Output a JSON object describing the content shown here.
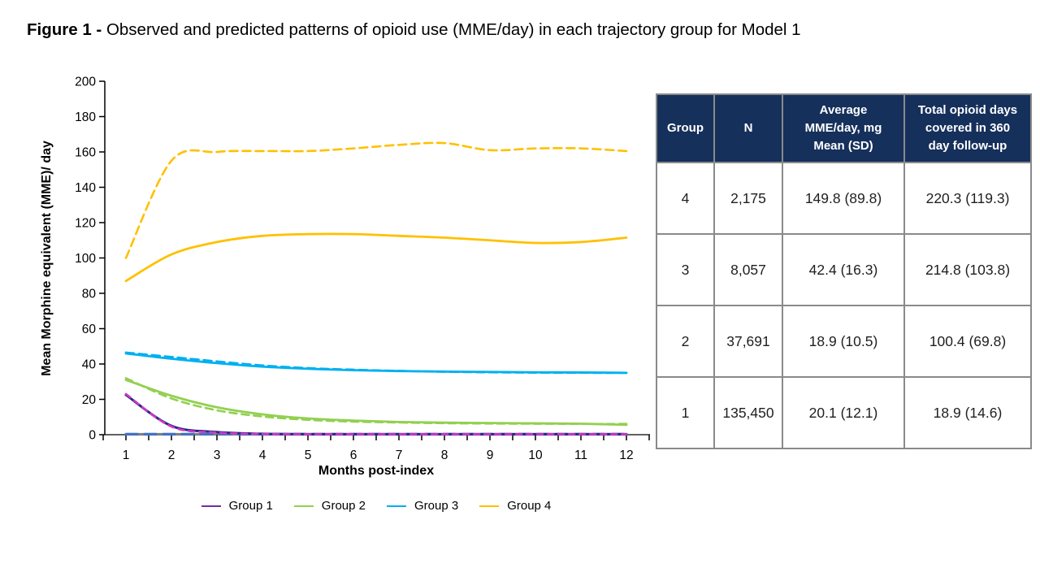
{
  "title": {
    "bold": "Figure 1 -",
    "rest": " Observed and predicted patterns of opioid use (MME/day) in each trajectory group for Model 1"
  },
  "chart_data": {
    "type": "line",
    "xlabel": "Months post-index",
    "ylabel": "Mean Morphine equivalent (MME)/ day",
    "x": [
      1,
      2,
      3,
      4,
      5,
      6,
      7,
      8,
      9,
      10,
      11,
      12
    ],
    "ylim": [
      0,
      200
    ],
    "ytick_step": 20,
    "grid": false,
    "legend_position": "bottom",
    "legend": [
      {
        "label": "Group 1",
        "color": "#7030A0"
      },
      {
        "label": "Group 2",
        "color": "#92D050"
      },
      {
        "label": "Group 3",
        "color": "#00B0F0"
      },
      {
        "label": "Group 4",
        "color": "#FFC000"
      }
    ],
    "series": [
      {
        "name": "zero baseline (predicted)",
        "style": "dashed",
        "color": "#4472C4",
        "dash": "14 9",
        "width": 3.2,
        "values": [
          0.2,
          0.2,
          0.2,
          0.2,
          0.2,
          0.2,
          0.2,
          0.2,
          0.2,
          0.2,
          0.2,
          0.2
        ]
      },
      {
        "name": "Group 4 predicted",
        "style": "dashed",
        "color": "#FFC000",
        "dash": "10 6",
        "width": 2.6,
        "values": [
          100,
          155,
          160,
          160.5,
          160.5,
          162,
          164,
          165,
          161,
          162,
          162,
          160.5
        ]
      },
      {
        "name": "Group 4 observed",
        "style": "solid",
        "color": "#FFC000",
        "width": 2.8,
        "values": [
          87,
          102,
          109,
          112.5,
          113.5,
          113.5,
          112.5,
          111.5,
          110,
          108.5,
          109,
          111.5
        ]
      },
      {
        "name": "Group 3 predicted",
        "style": "dashed",
        "color": "#00B0F0",
        "dash": "10 6",
        "width": 2.6,
        "values": [
          46.5,
          44,
          41.5,
          39.2,
          37.7,
          36.8,
          36.1,
          35.6,
          35.3,
          35.1,
          35,
          35
        ]
      },
      {
        "name": "Group 3 observed",
        "style": "solid",
        "color": "#00B0F0",
        "width": 2.8,
        "values": [
          46,
          43,
          40.5,
          38.5,
          37.3,
          36.5,
          36,
          35.7,
          35.5,
          35.3,
          35.2,
          35
        ]
      },
      {
        "name": "Group 2 predicted",
        "style": "dashed",
        "color": "#92D050",
        "dash": "9 6",
        "width": 2.6,
        "values": [
          32,
          20.5,
          13.8,
          10.3,
          8.4,
          7.4,
          6.9,
          6.5,
          6.3,
          6.2,
          6.1,
          6.1
        ]
      },
      {
        "name": "Group 2 observed",
        "style": "solid",
        "color": "#92D050",
        "width": 2.8,
        "values": [
          31,
          22,
          15.5,
          11.5,
          9.2,
          8,
          7.2,
          6.8,
          6.6,
          6.4,
          6.2,
          5.6
        ]
      },
      {
        "name": "Group 1 observed",
        "style": "solid",
        "color": "#222C7C",
        "width": 3,
        "values": [
          22.5,
          5,
          1.5,
          0.5,
          0.3,
          0.25,
          0.2,
          0.2,
          0.2,
          0.2,
          0.2,
          0.2
        ]
      },
      {
        "name": "Group 1 predicted",
        "style": "dashed",
        "color": "#D435CC",
        "dash": "7 6",
        "width": 2.6,
        "values": [
          23,
          4.6,
          1.2,
          0.4,
          0.25,
          0.2,
          0.2,
          0.2,
          0.2,
          0.2,
          0.2,
          0.2
        ]
      }
    ],
    "axis_color": "#000000",
    "baseline_gray": "#808080"
  },
  "table": {
    "header_bg": "#16305C",
    "border_color": "#8a8a8a",
    "header_lines": [
      [
        "Group"
      ],
      [
        "N"
      ],
      [
        "Average",
        "MME/day, mg",
        "Mean (SD)"
      ],
      [
        "Total opioid days",
        "covered in 360",
        "day follow-up"
      ]
    ],
    "rows": [
      [
        "4",
        "2,175",
        "149.8 (89.8)",
        "220.3 (119.3)"
      ],
      [
        "3",
        "8,057",
        "42.4 (16.3)",
        "214.8 (103.8)"
      ],
      [
        "2",
        "37,691",
        "18.9 (10.5)",
        "100.4 (69.8)"
      ],
      [
        "1",
        "135,450",
        "20.1 (12.1)",
        "18.9 (14.6)"
      ]
    ]
  }
}
